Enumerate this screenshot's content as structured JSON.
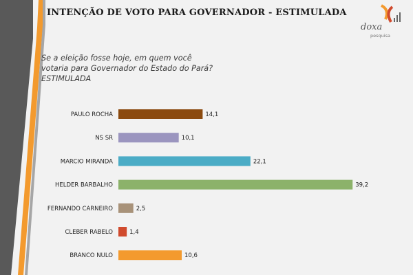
{
  "header": {
    "title": "INTENÇÃO DE VOTO PARA GOVERNADOR - ESTIMULADA"
  },
  "logo": {
    "name": "doxa",
    "subtitle": "pesquisa"
  },
  "question": "Se a eleição fosse hoje, em quem você votaria para Governador do Estado do Pará? ESTIMULADA",
  "colors": {
    "background": "#f2f2f2",
    "stripe_dark": "#595959",
    "stripe_orange": "#f39a2e"
  },
  "chart_data": {
    "type": "bar",
    "orientation": "horizontal",
    "categories": [
      "PAULO ROCHA",
      "NS SR",
      "MARCIO MIRANDA",
      "HELDER BARBALHO",
      "FERNANDO CARNEIRO",
      "CLEBER RABELO",
      "BRANCO NULO"
    ],
    "values": [
      14.1,
      10.1,
      22.1,
      39.2,
      2.5,
      1.4,
      10.6
    ],
    "value_labels": [
      "14,1",
      "10,1",
      "22,1",
      "39,2",
      "2,5",
      "1,4",
      "10,6"
    ],
    "colors": [
      "#8b4a0f",
      "#9b95bf",
      "#4bacc6",
      "#8cb26a",
      "#a89279",
      "#d04a2d",
      "#f39a2e"
    ],
    "xlim": [
      0,
      40
    ],
    "grid": false,
    "legend": "none"
  }
}
